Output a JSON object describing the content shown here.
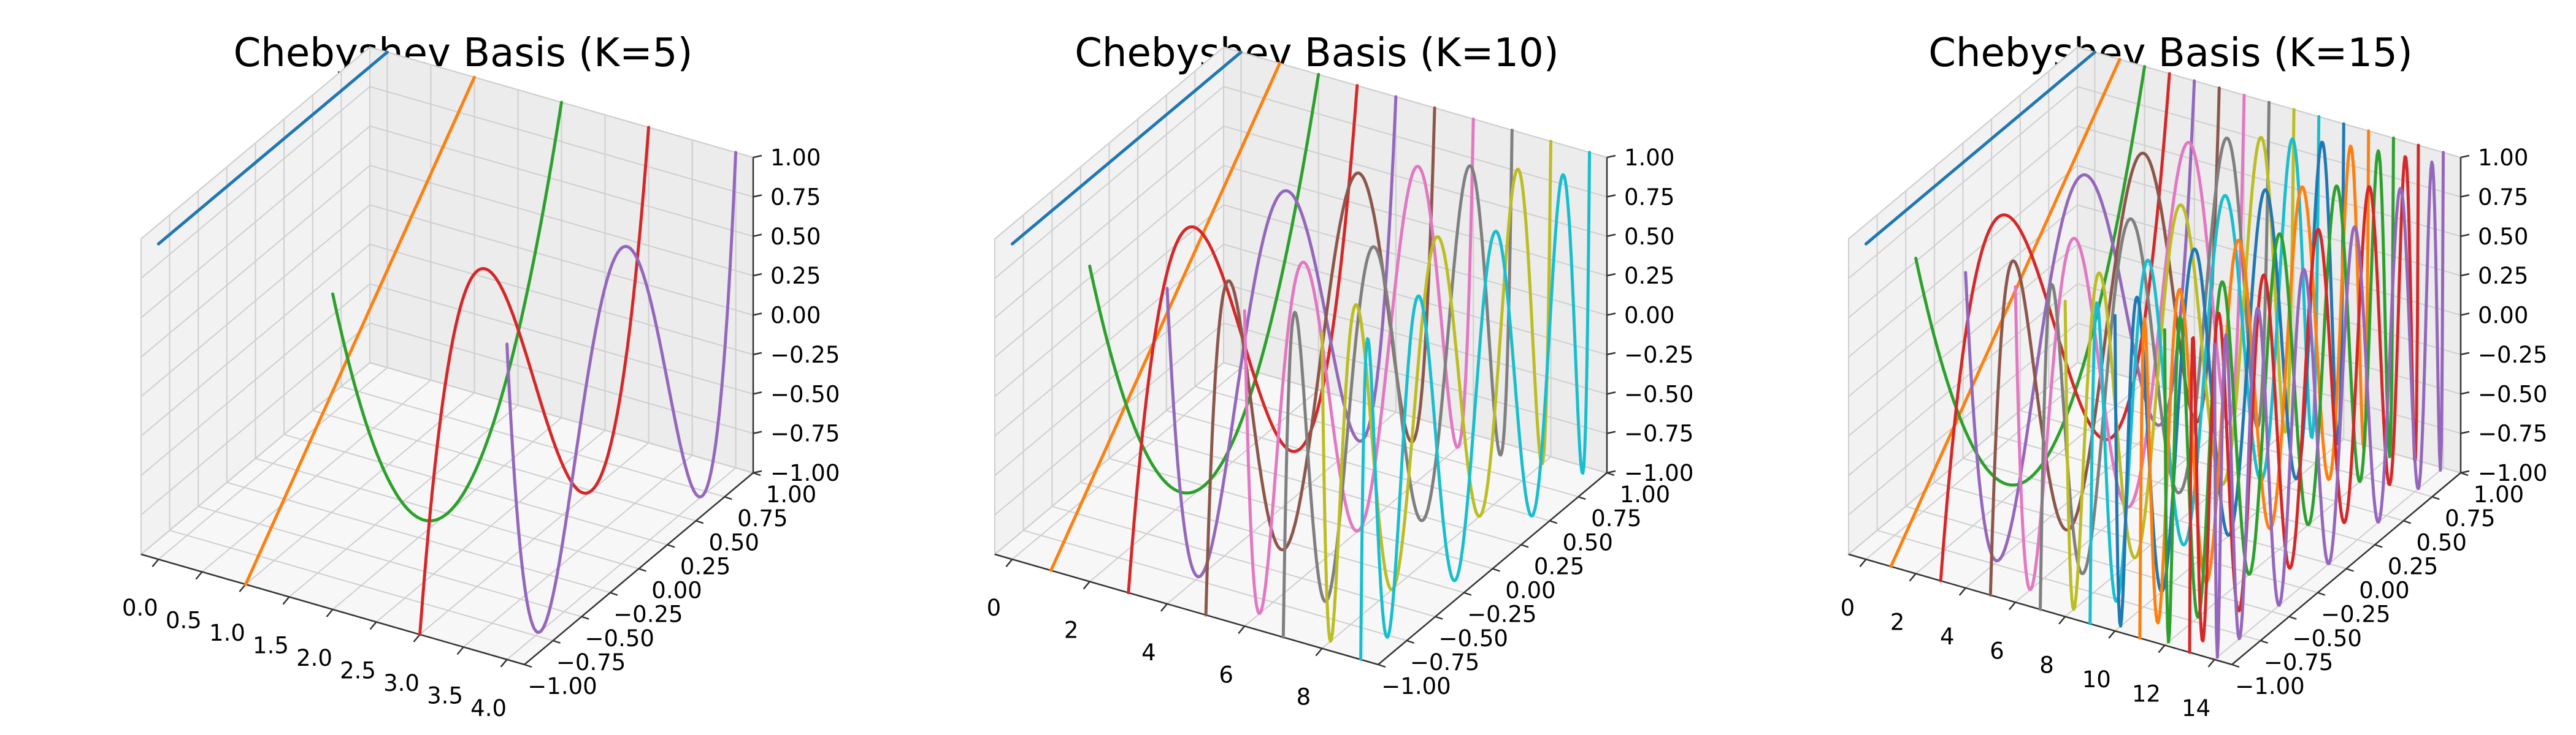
{
  "chart_data": [
    {
      "type": "line3d",
      "title": "Chebyshev Basis (K=5)",
      "k": 5,
      "xticks": [
        "0.0",
        "0.5",
        "1.0",
        "1.5",
        "2.0",
        "2.5",
        "3.0",
        "3.5",
        "4.0"
      ],
      "xlim": [
        -0.2,
        4.2
      ],
      "yticks": [
        "−1.00",
        "−0.75",
        "−0.50",
        "−0.25",
        "0.00",
        "0.25",
        "0.50",
        "0.75",
        "1.00"
      ],
      "ylim": [
        -1,
        1
      ],
      "zticks": [
        "−1.00",
        "−0.75",
        "−0.50",
        "−0.25",
        "0.00",
        "0.25",
        "0.50",
        "0.75",
        "1.00"
      ],
      "zlim": [
        -1,
        1
      ],
      "series_description": "Curve k plotted at x=k over y in [-1,1], z = T_k(y)",
      "grid": true
    },
    {
      "type": "line3d",
      "title": "Chebyshev Basis (K=10)",
      "k": 10,
      "xticks": [
        "0",
        "2",
        "4",
        "6",
        "8"
      ],
      "xlim": [
        -0.45,
        9.45
      ],
      "yticks": [
        "−1.00",
        "−0.75",
        "−0.50",
        "−0.25",
        "0.00",
        "0.25",
        "0.50",
        "0.75",
        "1.00"
      ],
      "ylim": [
        -1,
        1
      ],
      "zticks": [
        "−1.00",
        "−0.75",
        "−0.50",
        "−0.25",
        "0.00",
        "0.25",
        "0.50",
        "0.75",
        "1.00"
      ],
      "zlim": [
        -1,
        1
      ],
      "grid": true
    },
    {
      "type": "line3d",
      "title": "Chebyshev Basis (K=15)",
      "k": 15,
      "xticks": [
        "0",
        "2",
        "4",
        "6",
        "8",
        "10",
        "12",
        "14"
      ],
      "xlim": [
        -0.7,
        14.7
      ],
      "yticks": [
        "−1.00",
        "−0.75",
        "−0.50",
        "−0.25",
        "0.00",
        "0.25",
        "0.50",
        "0.75",
        "1.00"
      ],
      "ylim": [
        -1,
        1
      ],
      "zticks": [
        "−1.00",
        "−0.75",
        "−0.50",
        "−0.25",
        "0.00",
        "0.25",
        "0.50",
        "0.75",
        "1.00"
      ],
      "zlim": [
        -1,
        1
      ],
      "grid": true
    }
  ],
  "colors": [
    "#1f77b4",
    "#ff7f0e",
    "#2ca02c",
    "#d62728",
    "#9467bd",
    "#8c564b",
    "#e377c2",
    "#7f7f7f",
    "#bcbd22",
    "#17becf"
  ]
}
